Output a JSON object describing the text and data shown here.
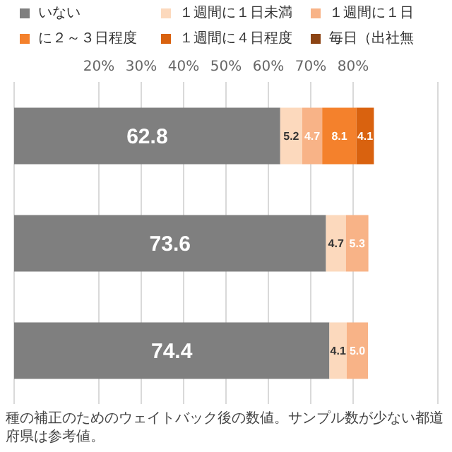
{
  "chart_data": {
    "type": "bar",
    "orientation": "horizontal",
    "stacked": true,
    "categories": [
      null,
      null,
      null
    ],
    "series": [
      {
        "name": "いない",
        "color": "#7f7f7f",
        "values": [
          62.8,
          73.6,
          74.4
        ],
        "value_labels": [
          "62.8",
          "73.6",
          "74.4"
        ]
      },
      {
        "name": "１週間に１日未満",
        "color": "#fcd9bd",
        "values": [
          5.2,
          4.7,
          4.1
        ],
        "value_labels": [
          "5.2",
          "4.7",
          "4.1"
        ]
      },
      {
        "name": "１週間に１日",
        "color": "#f8b387",
        "values": [
          4.7,
          5.3,
          5.0
        ],
        "value_labels": [
          "4.7",
          "5.3",
          "5.0"
        ]
      },
      {
        "name": "に２～３日程度",
        "color": "#f4812c",
        "values": [
          8.1,
          null,
          null
        ],
        "value_labels": [
          "8.1",
          null,
          null
        ]
      },
      {
        "name": "１週間に４日程度",
        "color": "#d9620f",
        "values": [
          4.1,
          null,
          null
        ],
        "value_labels": [
          "4.1",
          null,
          null
        ]
      },
      {
        "name": "毎日（出社無",
        "color": "#8c4414",
        "values": [
          null,
          null,
          null
        ]
      }
    ],
    "xlim": [
      0,
      100
    ],
    "xticks": [
      {
        "value": 20,
        "label": "20%"
      },
      {
        "value": 30,
        "label": "30%"
      },
      {
        "value": 40,
        "label": "40%"
      },
      {
        "value": 50,
        "label": "50%"
      },
      {
        "value": 60,
        "label": "60%"
      },
      {
        "value": 70,
        "label": "70%"
      },
      {
        "value": 80,
        "label": "80%"
      }
    ],
    "grid": "x",
    "legend": "top",
    "annotations": [
      "種の補正のためのウェイトバック後の数値。サンプル数が少ない都道府県は参考値。"
    ]
  }
}
